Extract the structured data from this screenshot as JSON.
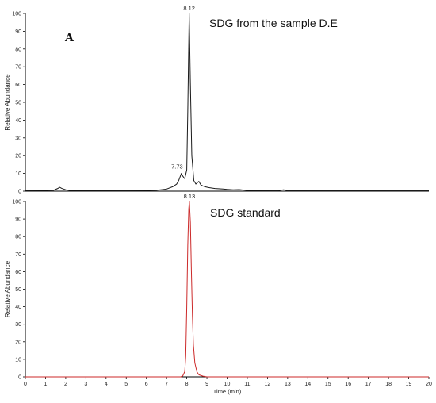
{
  "chart_data": [
    {
      "type": "line",
      "panel_label": "A",
      "annotation": "SDG from the sample D.E",
      "ylabel": "Relative Abundance",
      "xlabel": "",
      "ylim": [
        0,
        100
      ],
      "xlim": [
        0,
        20
      ],
      "yticks": [
        0,
        10,
        20,
        30,
        40,
        50,
        60,
        70,
        80,
        90,
        100
      ],
      "line_color": "#1a1a1a",
      "peak_labels": [
        {
          "x": 8.12,
          "y": 100,
          "text": "8.12"
        },
        {
          "x": 7.73,
          "y": 10,
          "text": "7.73"
        }
      ],
      "series": [
        {
          "x": [
            0.0,
            1.4,
            1.6,
            1.7,
            1.8,
            2.0,
            2.2,
            5.0,
            6.5,
            7.0,
            7.3,
            7.5,
            7.6,
            7.7,
            7.73,
            7.8,
            7.9,
            8.0,
            8.05,
            8.12,
            8.18,
            8.25,
            8.35,
            8.45,
            8.6,
            8.7,
            8.9,
            9.1,
            9.4,
            9.8,
            10.0,
            10.3,
            10.6,
            11.0,
            12.5,
            12.8,
            13.0,
            20.0
          ],
          "y": [
            0.3,
            0.5,
            1.5,
            2.2,
            1.6,
            0.8,
            0.4,
            0.3,
            0.5,
            1.2,
            2.5,
            4.0,
            6.0,
            9.0,
            10.0,
            8.5,
            7.0,
            12.0,
            45.0,
            100.0,
            60.0,
            20.0,
            6.0,
            4.0,
            5.5,
            3.5,
            2.5,
            2.0,
            1.5,
            1.2,
            1.0,
            0.8,
            0.9,
            0.4,
            0.3,
            0.8,
            0.3,
            0.2
          ]
        }
      ]
    },
    {
      "type": "line",
      "annotation": "SDG standard",
      "ylabel": "Relative Abundance",
      "xlabel": "Time (min)",
      "ylim": [
        0,
        100
      ],
      "xlim": [
        0,
        20
      ],
      "yticks": [
        0,
        10,
        20,
        30,
        40,
        50,
        60,
        70,
        80,
        90,
        100
      ],
      "xticks": [
        0,
        1,
        2,
        3,
        4,
        5,
        6,
        7,
        8,
        9,
        10,
        11,
        12,
        13,
        14,
        15,
        16,
        17,
        18,
        19,
        20
      ],
      "line_color": "#cc2a2a",
      "peak_labels": [
        {
          "x": 8.13,
          "y": 100,
          "text": "8.13"
        }
      ],
      "series": [
        {
          "x": [
            0.0,
            7.7,
            7.8,
            7.9,
            7.95,
            8.0,
            8.05,
            8.1,
            8.13,
            8.18,
            8.23,
            8.28,
            8.33,
            8.4,
            8.5,
            8.6,
            8.8,
            9.0,
            20.0
          ],
          "y": [
            0.0,
            0.0,
            0.5,
            3.0,
            12.0,
            40.0,
            75.0,
            96.0,
            100.0,
            88.0,
            60.0,
            35.0,
            18.0,
            8.0,
            3.0,
            1.2,
            0.4,
            0.0,
            0.0
          ]
        }
      ]
    }
  ]
}
